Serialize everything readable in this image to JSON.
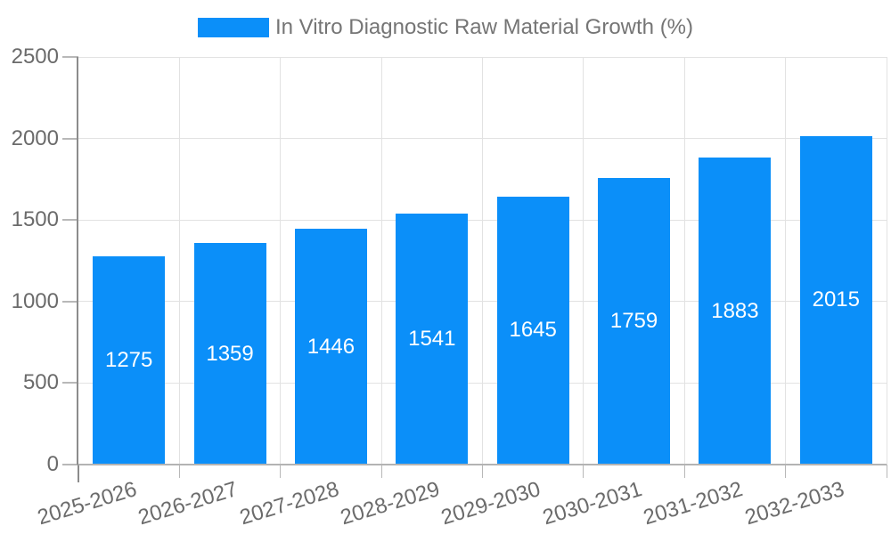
{
  "chart_data": {
    "type": "bar",
    "title": "In Vitro Diagnostic Raw Material Growth (%)",
    "series": [
      {
        "name": "In Vitro Diagnostic Raw Material Growth (%)",
        "values": [
          1275,
          1359,
          1446,
          1541,
          1645,
          1759,
          1883,
          2015
        ]
      }
    ],
    "categories": [
      "2025-2026",
      "2026-2027",
      "2027-2028",
      "2028-2029",
      "2029-2030",
      "2030-2031",
      "2031-2032",
      "2032-2033"
    ],
    "xlabel": "",
    "ylabel": "",
    "ylim": [
      0,
      2500
    ],
    "yticks": [
      0,
      500,
      1000,
      1500,
      2000,
      2500
    ],
    "grid": true,
    "legend_position": "top",
    "bar_labels": true,
    "xtick_rotation_deg": -17,
    "colors": {
      "bar": "#0b8ff9",
      "grid": "#e2e2e2",
      "tick": "#b8b8b8",
      "axis": "#8c8c8c",
      "baseline": "#b3b3b3",
      "axis_text": "#6b6b6b",
      "legend_text": "#757575",
      "bar_label_text": "#ffffff",
      "background": "#ffffff"
    }
  }
}
